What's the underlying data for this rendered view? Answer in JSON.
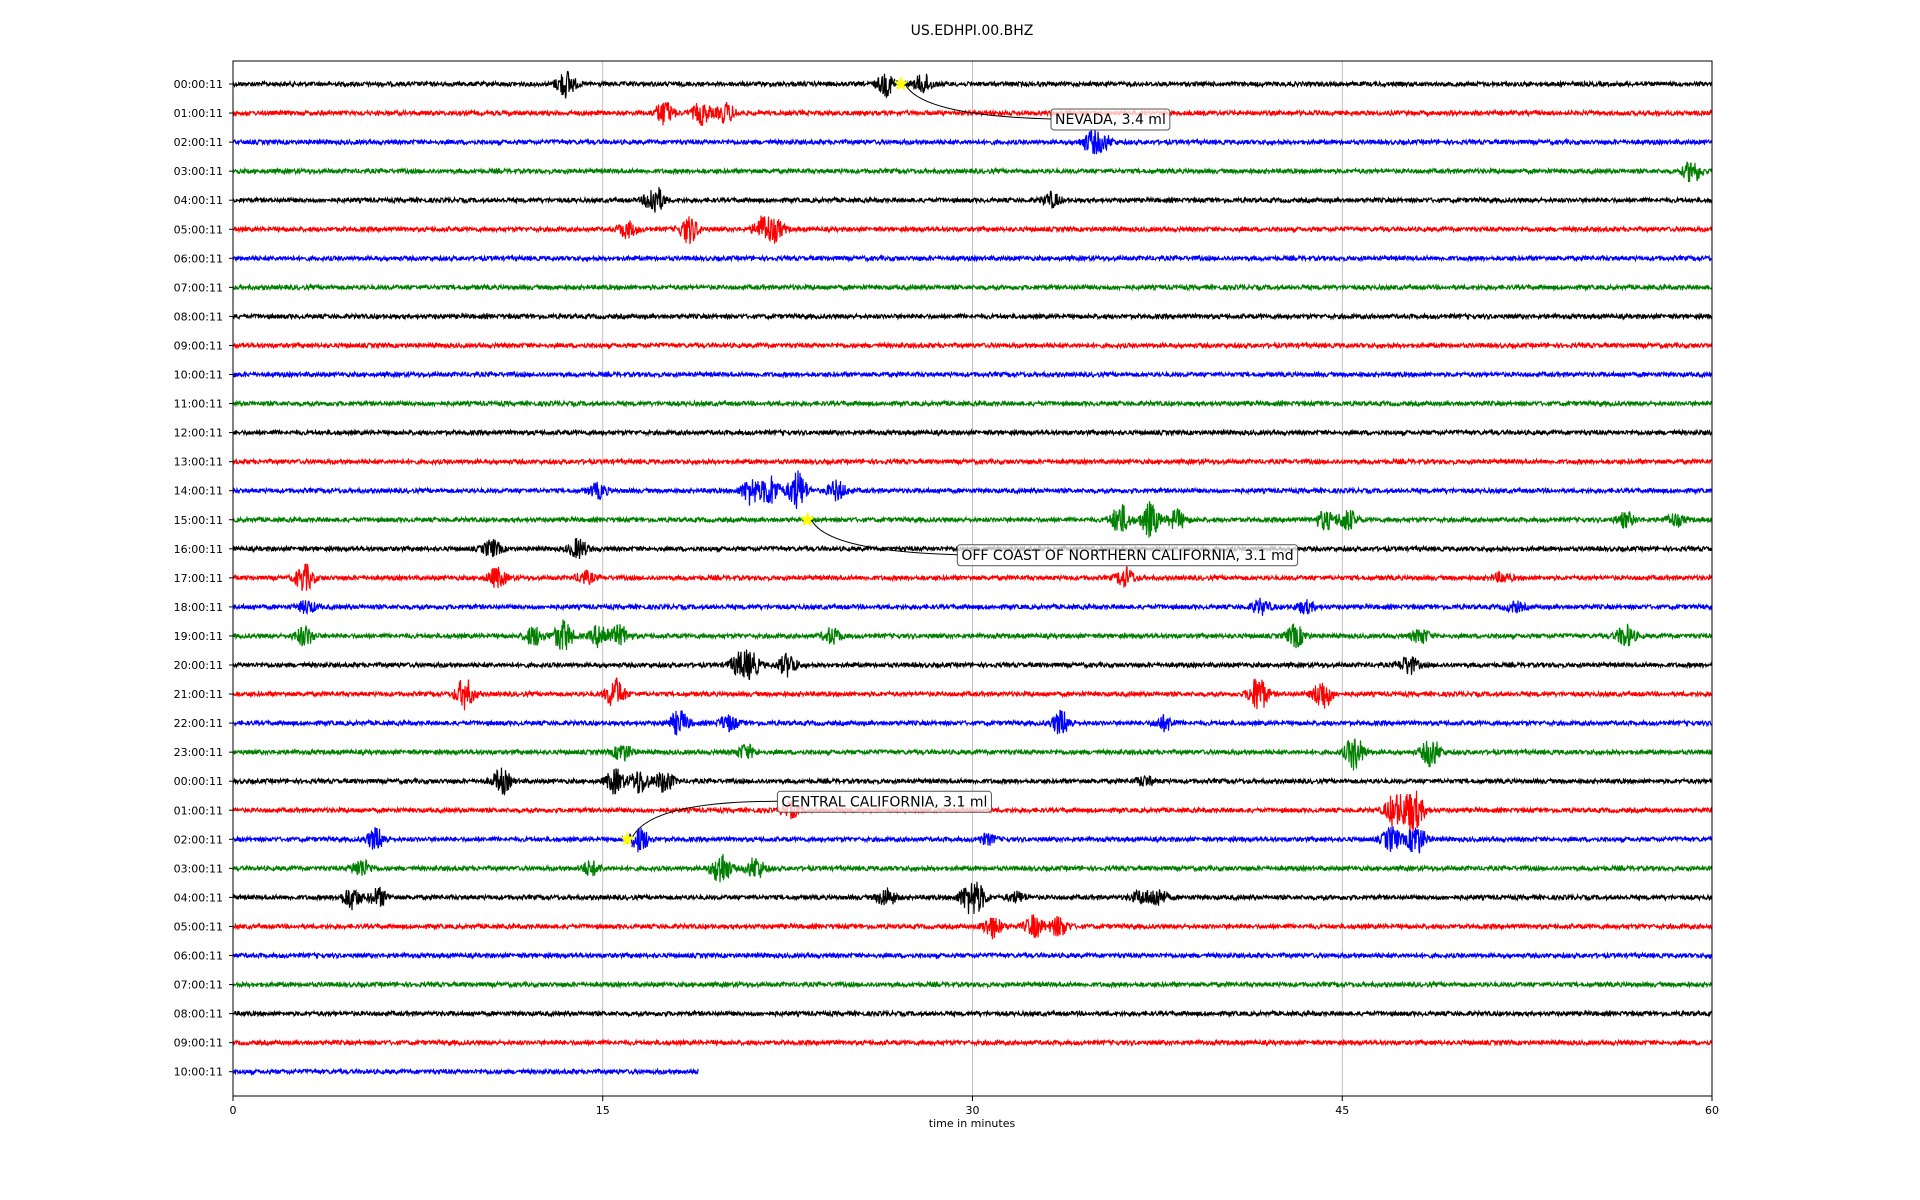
{
  "chart_data": {
    "type": "line",
    "title": "US.EDHPI.00.BHZ",
    "xlabel": "time in minutes",
    "ylabel": "",
    "xlim": [
      0,
      60
    ],
    "xticks": [
      0,
      15,
      30,
      45,
      60
    ],
    "grid": "vertical",
    "color_cycle": [
      "#000000",
      "#ff0000",
      "#0000ff",
      "#008000"
    ],
    "rows": [
      {
        "label": "00:00:11",
        "end": 60,
        "bursts": [
          [
            13.5,
            2.2
          ],
          [
            26.5,
            1.8
          ],
          [
            28,
            1.6
          ]
        ]
      },
      {
        "label": "01:00:11",
        "end": 60,
        "bursts": [
          [
            17.5,
            2.0
          ],
          [
            19,
            1.8
          ],
          [
            20,
            1.6
          ]
        ]
      },
      {
        "label": "02:00:11",
        "end": 60,
        "bursts": [
          [
            34.8,
            1.6
          ],
          [
            35.3,
            1.2
          ]
        ]
      },
      {
        "label": "03:00:11",
        "end": 60,
        "bursts": [
          [
            59.2,
            1.8
          ]
        ]
      },
      {
        "label": "04:00:11",
        "end": 60,
        "bursts": [
          [
            17.1,
            2.5
          ],
          [
            33.2,
            1.2
          ]
        ]
      },
      {
        "label": "05:00:11",
        "end": 60,
        "bursts": [
          [
            16,
            1.3
          ],
          [
            18.5,
            2.2
          ],
          [
            21.5,
            2.0
          ],
          [
            22,
            1.6
          ]
        ]
      },
      {
        "label": "06:00:11",
        "end": 60,
        "bursts": []
      },
      {
        "label": "07:00:11",
        "end": 60,
        "bursts": []
      },
      {
        "label": "08:00:11",
        "end": 60,
        "bursts": []
      },
      {
        "label": "09:00:11",
        "end": 60,
        "bursts": []
      },
      {
        "label": "10:00:11",
        "end": 60,
        "bursts": []
      },
      {
        "label": "11:00:11",
        "end": 60,
        "bursts": []
      },
      {
        "label": "12:00:11",
        "end": 60,
        "bursts": []
      },
      {
        "label": "13:00:11",
        "end": 60,
        "bursts": []
      },
      {
        "label": "14:00:11",
        "end": 60,
        "bursts": [
          [
            14.8,
            1.2
          ],
          [
            21,
            2.2
          ],
          [
            21.8,
            2.5
          ],
          [
            22.9,
            3.2
          ],
          [
            24.5,
            1.6
          ]
        ]
      },
      {
        "label": "15:00:11",
        "end": 60,
        "bursts": [
          [
            36,
            2.5
          ],
          [
            37.2,
            2.8
          ],
          [
            38.3,
            1.6
          ],
          [
            44.3,
            1.5
          ],
          [
            45.2,
            1.8
          ],
          [
            56.5,
            1.2
          ],
          [
            58.5,
            1.0
          ]
        ]
      },
      {
        "label": "16:00:11",
        "end": 60,
        "bursts": [
          [
            10.5,
            1.4
          ],
          [
            14,
            1.6
          ]
        ]
      },
      {
        "label": "17:00:11",
        "end": 60,
        "bursts": [
          [
            2.9,
            2.2
          ],
          [
            10.7,
            1.6
          ],
          [
            14.3,
            1.0
          ],
          [
            36.2,
            1.6
          ],
          [
            51.5,
            0.8
          ]
        ]
      },
      {
        "label": "18:00:11",
        "end": 60,
        "bursts": [
          [
            3,
            1.0
          ],
          [
            41.7,
            1.2
          ],
          [
            43.5,
            1.0
          ],
          [
            52,
            0.8
          ]
        ]
      },
      {
        "label": "19:00:11",
        "end": 60,
        "bursts": [
          [
            2.9,
            1.6
          ],
          [
            12.2,
            1.6
          ],
          [
            13.4,
            2.6
          ],
          [
            14.9,
            2.0
          ],
          [
            15.7,
            1.6
          ],
          [
            24.3,
            1.3
          ],
          [
            43.1,
            1.8
          ],
          [
            48.2,
            1.2
          ],
          [
            56.5,
            1.8
          ]
        ]
      },
      {
        "label": "20:00:11",
        "end": 60,
        "bursts": [
          [
            20.5,
            1.6
          ],
          [
            21,
            2.0
          ],
          [
            22.5,
            1.8
          ],
          [
            47.7,
            1.5
          ]
        ]
      },
      {
        "label": "21:00:11",
        "end": 60,
        "bursts": [
          [
            9.4,
            2.5
          ],
          [
            15.5,
            2.6
          ],
          [
            41.6,
            3.0
          ],
          [
            44.2,
            2.5
          ]
        ]
      },
      {
        "label": "22:00:11",
        "end": 60,
        "bursts": [
          [
            18.1,
            2.0
          ],
          [
            20.1,
            1.3
          ],
          [
            33.6,
            2.0
          ],
          [
            37.8,
            1.2
          ]
        ]
      },
      {
        "label": "23:00:11",
        "end": 60,
        "bursts": [
          [
            15.8,
            1.4
          ],
          [
            20.8,
            1.2
          ],
          [
            45.5,
            2.8
          ],
          [
            48.6,
            2.4
          ]
        ]
      },
      {
        "label": "00:00:11",
        "end": 60,
        "bursts": [
          [
            10.9,
            2.0
          ],
          [
            15.5,
            2.0
          ],
          [
            16.5,
            2.0
          ],
          [
            17.5,
            1.8
          ],
          [
            37,
            0.8
          ]
        ]
      },
      {
        "label": "01:00:11",
        "end": 60,
        "bursts": [
          [
            22.6,
            1.2
          ],
          [
            47.1,
            2.5
          ],
          [
            47.7,
            2.2
          ],
          [
            48.0,
            2.0
          ]
        ]
      },
      {
        "label": "02:00:11",
        "end": 60,
        "bursts": [
          [
            5.8,
            1.8
          ],
          [
            16.5,
            2.0
          ],
          [
            30.6,
            0.8
          ],
          [
            47,
            2.0
          ],
          [
            48.0,
            2.5
          ]
        ]
      },
      {
        "label": "03:00:11",
        "end": 60,
        "bursts": [
          [
            5.2,
            1.5
          ],
          [
            14.5,
            1.2
          ],
          [
            19.8,
            2.8
          ],
          [
            21.2,
            1.8
          ]
        ]
      },
      {
        "label": "04:00:11",
        "end": 60,
        "bursts": [
          [
            4.8,
            1.8
          ],
          [
            5.9,
            1.5
          ],
          [
            26.5,
            1.5
          ],
          [
            29.8,
            1.8
          ],
          [
            30.2,
            2.0
          ],
          [
            31.8,
            0.8
          ],
          [
            36.8,
            1.0
          ],
          [
            37.5,
            1.5
          ]
        ]
      },
      {
        "label": "05:00:11",
        "end": 60,
        "bursts": [
          [
            30.8,
            1.8
          ],
          [
            32.5,
            1.8
          ],
          [
            33.5,
            1.6
          ]
        ]
      },
      {
        "label": "06:00:11",
        "end": 60,
        "bursts": []
      },
      {
        "label": "07:00:11",
        "end": 60,
        "bursts": []
      },
      {
        "label": "08:00:11",
        "end": 60,
        "bursts": []
      },
      {
        "label": "09:00:11",
        "end": 60,
        "bursts": []
      },
      {
        "label": "10:00:11",
        "end": 18.9,
        "bursts": []
      }
    ],
    "events": [
      {
        "label": "NEVADA, 3.4 ml",
        "row": 0,
        "time": 27.1,
        "marker_color": "#ffff00"
      },
      {
        "label": "OFF COAST OF NORTHERN CALIFORNIA, 3.1 md",
        "row": 15,
        "time": 23.3,
        "marker_color": "#ffff00"
      },
      {
        "label": "CENTRAL CALIFORNIA, 3.1 ml",
        "row": 26,
        "time": 16.0,
        "marker_color": "#ffff00"
      }
    ]
  }
}
